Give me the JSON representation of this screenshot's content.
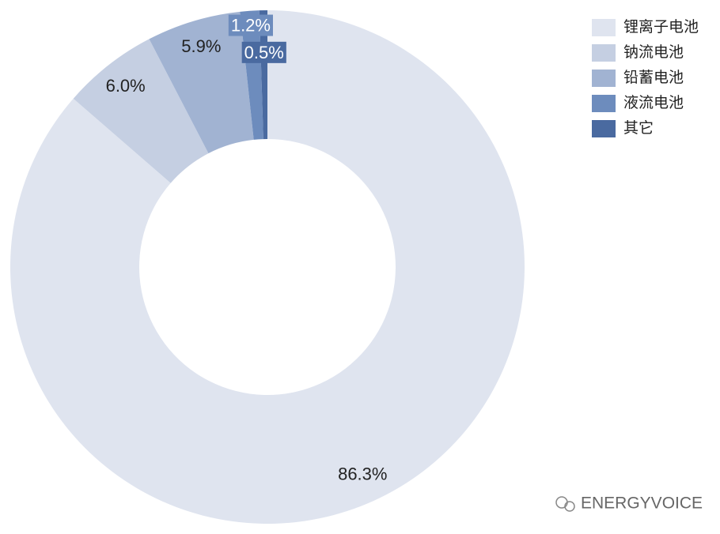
{
  "chart_data": {
    "type": "donut",
    "categories": [
      "锂离子电池",
      "钠流电池",
      "铅蓄电池",
      "液流电池",
      "其它"
    ],
    "values": [
      86.3,
      6.0,
      5.9,
      1.2,
      0.5
    ],
    "value_labels": [
      "86.3%",
      "6.0%",
      "5.9%",
      "1.2%",
      "0.5%"
    ],
    "colors": [
      "#dfe4ef",
      "#c5cfe2",
      "#a1b3d2",
      "#6d8cbd",
      "#4a6aa0"
    ],
    "legend": "top-right",
    "watermark": "ENERGYVOICE"
  }
}
